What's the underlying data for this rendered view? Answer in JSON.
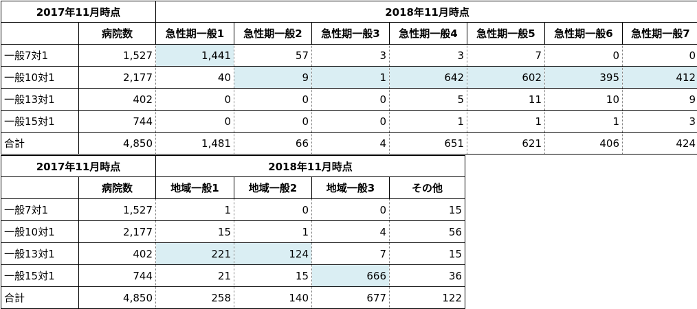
{
  "table1": {
    "header_left": "2017年11月時点",
    "header_right": "2018年11月時点",
    "col_hospital": "病院数",
    "cols": [
      "急性期一般1",
      "急性期一般2",
      "急性期一般3",
      "急性期一般4",
      "急性期一般5",
      "急性期一般6",
      "急性期一般7"
    ],
    "rows": [
      {
        "label": "一般7対1",
        "hospitals": "1,527",
        "values": [
          "1,441",
          "57",
          "3",
          "3",
          "7",
          "0",
          "0"
        ]
      },
      {
        "label": "一般10対1",
        "hospitals": "2,177",
        "values": [
          "40",
          "9",
          "1",
          "642",
          "602",
          "395",
          "412"
        ]
      },
      {
        "label": "一般13対1",
        "hospitals": "402",
        "values": [
          "0",
          "0",
          "0",
          "5",
          "11",
          "10",
          "9"
        ]
      },
      {
        "label": "一般15対1",
        "hospitals": "744",
        "values": [
          "0",
          "0",
          "0",
          "1",
          "1",
          "1",
          "3"
        ]
      },
      {
        "label": "合計",
        "hospitals": "4,850",
        "values": [
          "1,481",
          "66",
          "4",
          "651",
          "621",
          "406",
          "424"
        ]
      }
    ],
    "highlight_color": "#daeef3"
  },
  "table2": {
    "header_left": "2017年11月時点",
    "header_right": "2018年11月時点",
    "col_hospital": "病院数",
    "cols": [
      "地域一般1",
      "地域一般2",
      "地域一般3",
      "その他"
    ],
    "rows": [
      {
        "label": "一般7対1",
        "hospitals": "1,527",
        "values": [
          "1",
          "0",
          "0",
          "15"
        ]
      },
      {
        "label": "一般10対1",
        "hospitals": "2,177",
        "values": [
          "15",
          "1",
          "4",
          "56"
        ]
      },
      {
        "label": "一般13対1",
        "hospitals": "402",
        "values": [
          "221",
          "124",
          "7",
          "15"
        ]
      },
      {
        "label": "一般15対1",
        "hospitals": "744",
        "values": [
          "21",
          "15",
          "666",
          "36"
        ]
      },
      {
        "label": "合計",
        "hospitals": "4,850",
        "values": [
          "258",
          "140",
          "677",
          "122"
        ]
      }
    ]
  }
}
